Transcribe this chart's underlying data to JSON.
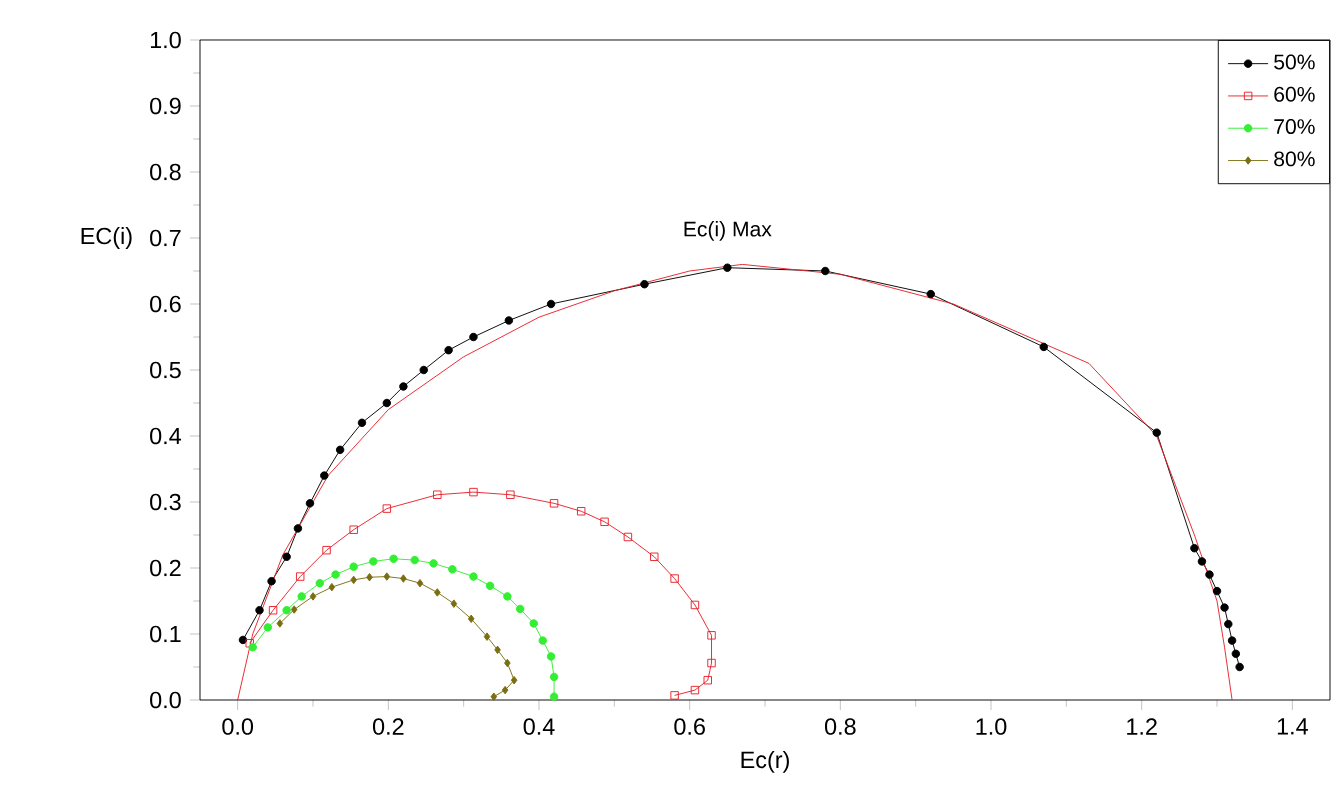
{
  "chart_data": {
    "type": "line",
    "xlabel": "Ec(r)",
    "ylabel": "EC(i)",
    "xlim": [
      -0.05,
      1.45
    ],
    "ylim": [
      0,
      1
    ],
    "xticks": [
      {
        "value": 0,
        "label": "0.0"
      },
      0.2,
      0.4,
      0.6,
      0.8,
      {
        "value": 1,
        "label": "1.0"
      },
      1.2,
      1.4
    ],
    "yticks": [
      {
        "value": 0,
        "label": "0.0"
      },
      0.1,
      0.2,
      0.3,
      0.4,
      0.5,
      0.6,
      0.7,
      0.8,
      0.9,
      {
        "value": 1,
        "label": "1.0"
      }
    ],
    "legend": "top right",
    "grid": false,
    "annotations": [
      {
        "text": "Ec(i)  Max",
        "x": 0.65,
        "y": 0.655
      }
    ],
    "series": [
      {
        "name": "50%",
        "color": "#000000",
        "marker": "circle",
        "line_style": "solid",
        "x": [
          0.007,
          0.029,
          0.045,
          0.065,
          0.08,
          0.096,
          0.115,
          0.136,
          0.165,
          0.198,
          0.22,
          0.247,
          0.28,
          0.313,
          0.36,
          0.416,
          0.54,
          0.65,
          0.78,
          0.92,
          1.07,
          1.22,
          1.27,
          1.28,
          1.29,
          1.3,
          1.31,
          1.315,
          1.32,
          1.325,
          1.33
        ],
        "values": [
          0.091,
          0.136,
          0.18,
          0.217,
          0.26,
          0.298,
          0.34,
          0.379,
          0.42,
          0.45,
          0.475,
          0.5,
          0.53,
          0.55,
          0.575,
          0.6,
          0.63,
          0.655,
          0.65,
          0.615,
          0.535,
          0.405,
          0.23,
          0.21,
          0.19,
          0.165,
          0.14,
          0.115,
          0.09,
          0.07,
          0.05
        ]
      },
      {
        "name": "60%",
        "color": "#e8202a",
        "marker": "square",
        "line_style": "solid",
        "x": [
          0.016,
          0.047,
          0.083,
          0.118,
          0.154,
          0.198,
          0.265,
          0.313,
          0.362,
          0.42,
          0.456,
          0.487,
          0.518,
          0.553,
          0.58,
          0.607,
          0.629,
          0.629,
          0.624,
          0.607,
          0.58
        ],
        "values": [
          0.086,
          0.136,
          0.187,
          0.227,
          0.258,
          0.29,
          0.311,
          0.315,
          0.311,
          0.298,
          0.286,
          0.27,
          0.247,
          0.217,
          0.184,
          0.144,
          0.098,
          0.056,
          0.03,
          0.015,
          0.007
        ]
      },
      {
        "name": "70%",
        "color": "#33ee33",
        "marker": "circle",
        "line_style": "solid",
        "x": [
          0.02,
          0.04,
          0.065,
          0.085,
          0.109,
          0.13,
          0.154,
          0.18,
          0.207,
          0.235,
          0.26,
          0.285,
          0.313,
          0.335,
          0.358,
          0.375,
          0.393,
          0.405,
          0.416,
          0.42,
          0.42
        ],
        "values": [
          0.08,
          0.11,
          0.136,
          0.157,
          0.177,
          0.19,
          0.202,
          0.21,
          0.214,
          0.212,
          0.207,
          0.198,
          0.187,
          0.173,
          0.157,
          0.138,
          0.116,
          0.09,
          0.066,
          0.035,
          0.005
        ]
      },
      {
        "name": "80%",
        "color": "#7a6e10",
        "marker": "diamond",
        "line_style": "solid",
        "x": [
          0.056,
          0.075,
          0.1,
          0.125,
          0.154,
          0.175,
          0.198,
          0.22,
          0.242,
          0.265,
          0.287,
          0.31,
          0.331,
          0.345,
          0.358,
          0.367,
          0.355,
          0.34
        ],
        "values": [
          0.116,
          0.137,
          0.157,
          0.171,
          0.182,
          0.186,
          0.187,
          0.184,
          0.177,
          0.163,
          0.146,
          0.123,
          0.096,
          0.076,
          0.056,
          0.03,
          0.015,
          0.005
        ]
      },
      {
        "color": "#e8202a",
        "marker": "none",
        "line_style": "solid",
        "x": [
          0,
          0.02,
          0.06,
          0.12,
          0.2,
          0.3,
          0.4,
          0.5,
          0.6,
          0.67,
          0.8,
          0.95,
          1.13,
          1.22,
          1.27,
          1.3,
          1.31,
          1.32
        ],
        "values": [
          0,
          0.1,
          0.22,
          0.34,
          0.44,
          0.52,
          0.58,
          0.62,
          0.65,
          0.66,
          0.645,
          0.6,
          0.51,
          0.4,
          0.25,
          0.15,
          0.08,
          0
        ]
      }
    ]
  }
}
